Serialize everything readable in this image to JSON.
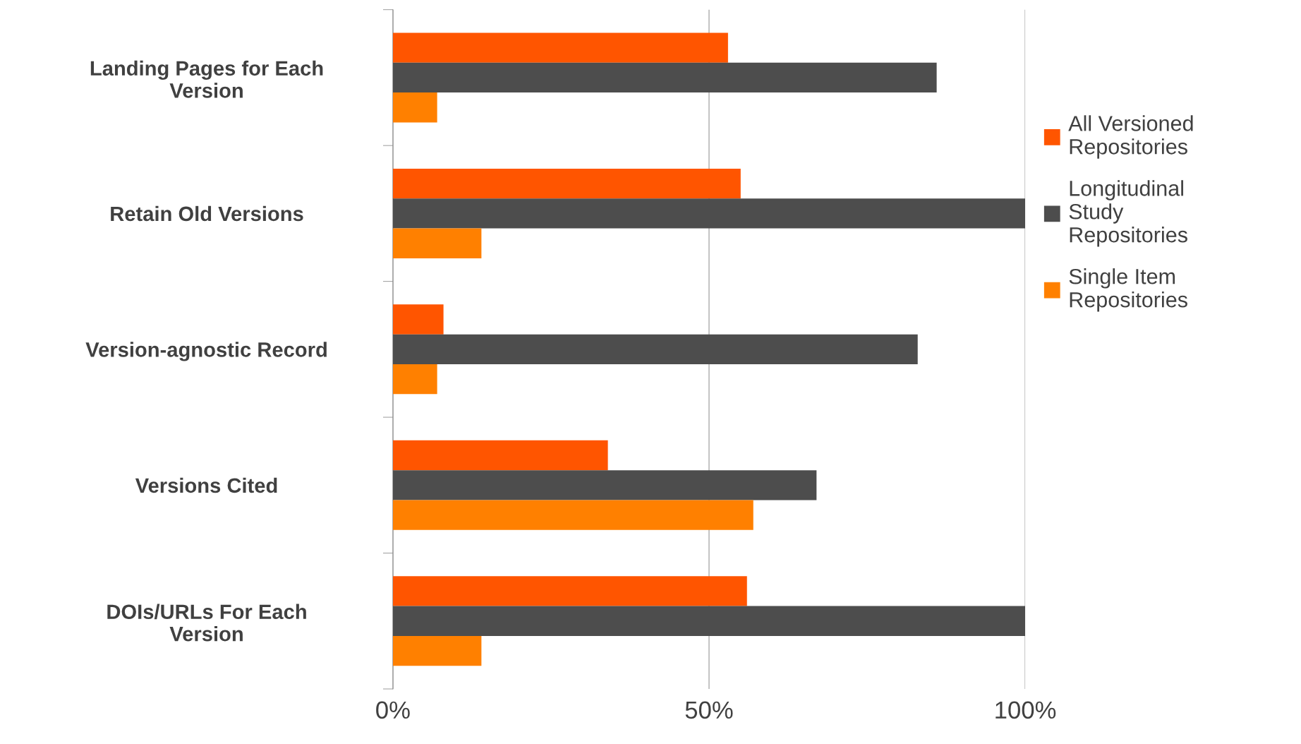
{
  "chart_data": {
    "type": "bar",
    "orientation": "horizontal",
    "categories": [
      "Landing Pages for Each\nVersion",
      "Retain Old Versions",
      "Version-agnostic Record",
      "Versions Cited",
      "DOIs/URLs For Each\nVersion"
    ],
    "series": [
      {
        "name": "All Versioned\nRepositories",
        "color": "#ff5500",
        "values": [
          53,
          55,
          8,
          34,
          56
        ]
      },
      {
        "name": "Longitudinal\nStudy\nRepositories",
        "color": "#4d4d4d",
        "values": [
          86,
          100,
          83,
          67,
          100
        ]
      },
      {
        "name": "Single Item\nRepositories",
        "color": "#ff8000",
        "values": [
          7,
          14,
          7,
          57,
          14
        ]
      }
    ],
    "xlim": [
      0,
      100
    ],
    "xticks": [
      {
        "value": 0,
        "label": "0%"
      },
      {
        "value": 50,
        "label": "50%"
      },
      {
        "value": 100,
        "label": "100%"
      }
    ],
    "grid": "x",
    "legend": "right"
  }
}
